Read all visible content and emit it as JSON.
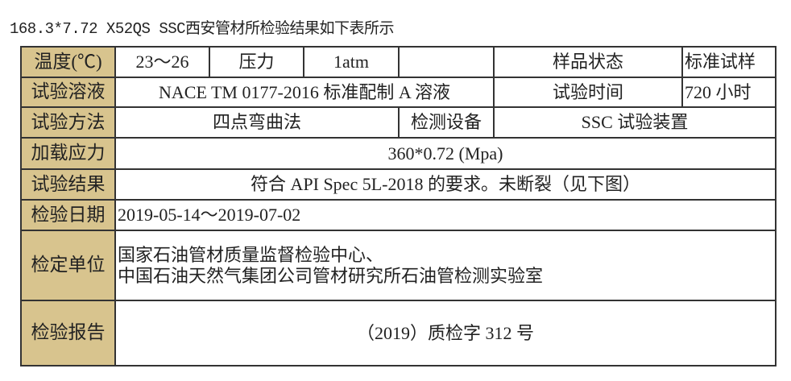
{
  "title": "168.3*7.72 X52QS SSC西安管材所检验结果如下表所示",
  "colors": {
    "label_bg": "#d8c48e",
    "border": "#333333"
  },
  "rows": {
    "temperature": {
      "label": "温度(℃)",
      "value": "23～26",
      "pressure_label": "压力",
      "pressure_value": "1atm",
      "blank": "",
      "sample_state_label": "样品状态",
      "sample_state_value": "标准试样"
    },
    "solution": {
      "label": "试验溶液",
      "value": "NACE TM 0177-2016 标准配制 A 溶液",
      "time_label": "试验时间",
      "time_value": "720 小时"
    },
    "method": {
      "label": "试验方法",
      "value": "四点弯曲法",
      "device_label": "检测设备",
      "device_value": "SSC 试验装置"
    },
    "stress": {
      "label": "加载应力",
      "value": "360*0.72 (Mpa)"
    },
    "result": {
      "label": "试验结果",
      "value": "符合 API Spec 5L-2018 的要求。未断裂（见下图）"
    },
    "date": {
      "label": "检验日期",
      "value": "2019-05-14～2019-07-02"
    },
    "unit": {
      "label": "检定单位",
      "line1": "国家石油管材质量监督检验中心、",
      "line2": "中国石油天然气集团公司管材研究所石油管检测实验室"
    },
    "report": {
      "label": "检验报告",
      "value": "（2019）质检字 312 号"
    }
  }
}
